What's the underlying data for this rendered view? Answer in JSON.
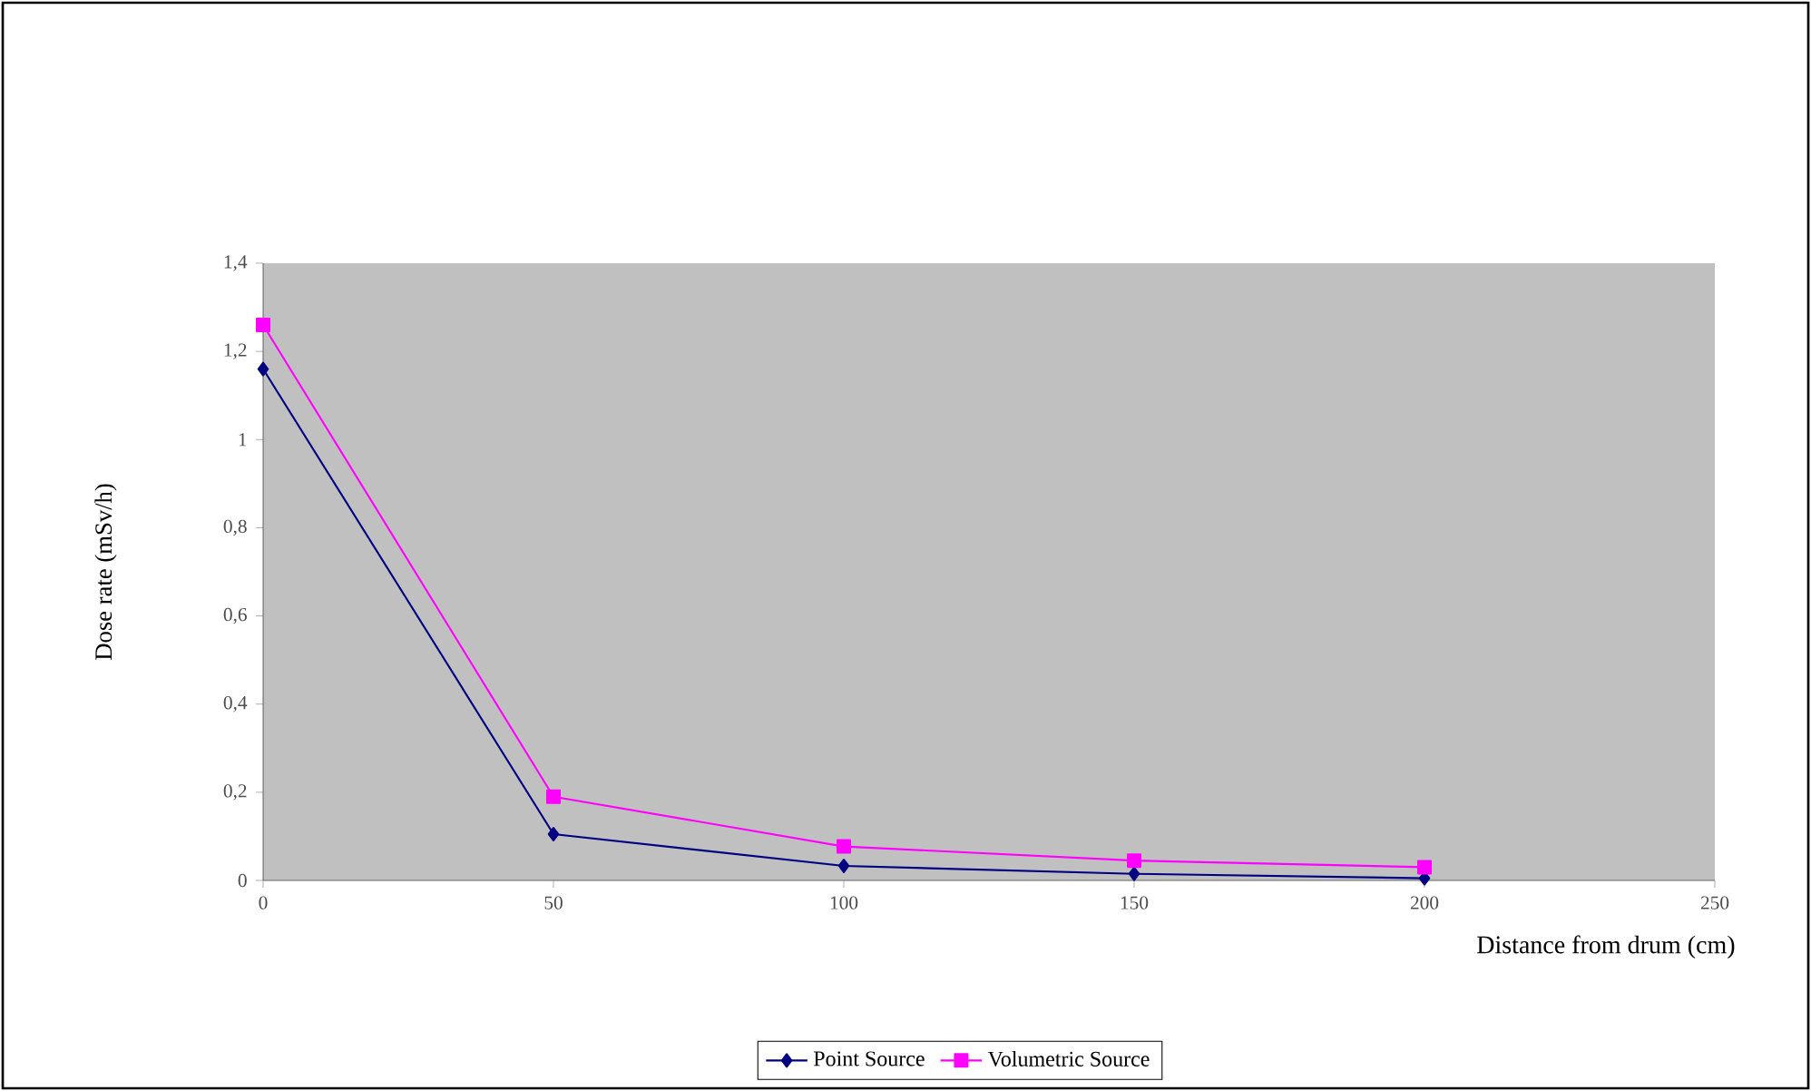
{
  "chart_data": {
    "type": "line",
    "xlabel": "Distance from drum (cm)",
    "ylabel": "Dose rate (mSv/h)",
    "x": [
      0,
      50,
      100,
      150,
      200
    ],
    "series": [
      {
        "name": "Point Source",
        "color": "#000080",
        "marker": "diamond",
        "values": [
          1.16,
          0.105,
          0.033,
          0.015,
          0.005
        ]
      },
      {
        "name": "Volumetric Source",
        "color": "#ff00ff",
        "marker": "square",
        "values": [
          1.26,
          0.19,
          0.077,
          0.045,
          0.03
        ]
      }
    ],
    "xlim": [
      0,
      250
    ],
    "xticks": [
      0,
      50,
      100,
      150,
      200,
      250
    ],
    "ylim": [
      0,
      1.4
    ],
    "yticks": [
      0,
      {
        "value": 0.2,
        "label": "0,2"
      },
      {
        "value": 0.4,
        "label": "0,4"
      },
      {
        "value": 0.6,
        "label": "0,6"
      },
      {
        "value": 0.8,
        "label": "0,8"
      },
      1,
      {
        "value": 1.2,
        "label": "1,2"
      },
      {
        "value": 1.4,
        "label": "1,4"
      }
    ],
    "grid": false,
    "legend": "bottom",
    "line_style": "solid"
  }
}
